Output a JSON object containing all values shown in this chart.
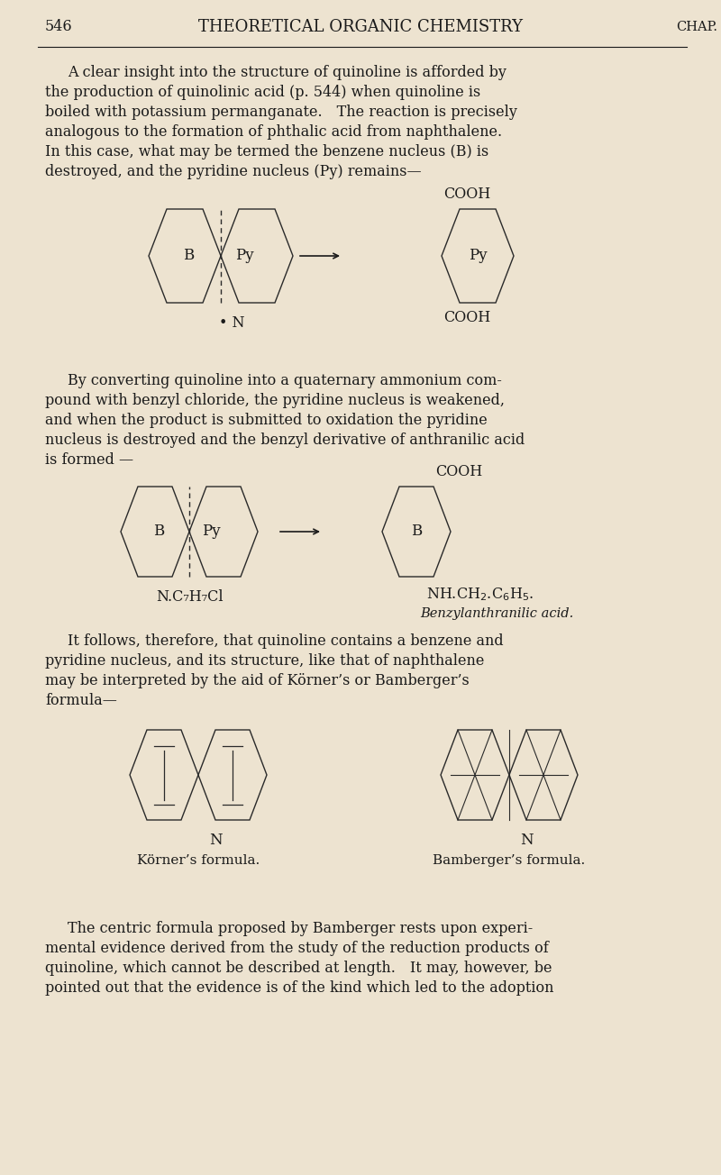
{
  "bg_color": "#EDE3D0",
  "text_color": "#1a1a1a",
  "page_number": "546",
  "header_title": "THEORETICAL ORGANIC CHEMISTRY",
  "header_right": "CHAP.",
  "label_korner": "Körner’s formula.",
  "label_bamberger": "Bamberger’s formula.",
  "label_benzylanthranilic": "Benzylanthranilic acid.",
  "label_ncl": "N.C₇H₇Cl",
  "para1_lines": [
    "A clear insight into the structure of quinoline is afforded by",
    "the production of quinolinic acid (p. 544) when quinoline is",
    "boiled with potassium permanganate. The reaction is precisely",
    "analogous to the formation of phthalic acid from naphthalene.",
    "In this case, what may be termed the benzene nucleus (B) is",
    "destroyed, and the pyridine nucleus (Py) remains—"
  ],
  "para2_lines": [
    "By converting quinoline into a quaternary ammonium com­",
    "pound with benzyl chloride, the pyridine nucleus is weakened,",
    "and when the product is submitted to oxidation the pyridine",
    "nucleus is destroyed and the benzyl derivative of anthranilic acid",
    "is formed —"
  ],
  "para3_lines": [
    "It follows, therefore, that quinoline contains a benzene and",
    "pyridine nucleus, and its structure, like that of naphthalene",
    "may be interpreted by the aid of Körner’s or Bamberger’s",
    "formula—"
  ],
  "para4_lines": [
    "The centric formula proposed by Bamberger rests upon experi­",
    "mental evidence derived from the study of the reduction products of",
    "quinoline, which cannot be described at length. It may, however, be",
    "pointed out that the evidence is of the kind which led to the adoption"
  ]
}
